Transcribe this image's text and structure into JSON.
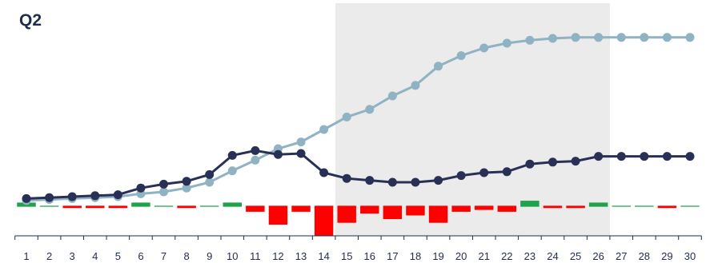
{
  "chart_data": {
    "type": "line",
    "title": "Q2",
    "x": [
      1,
      2,
      3,
      4,
      5,
      6,
      7,
      8,
      9,
      10,
      11,
      12,
      13,
      14,
      15,
      16,
      17,
      18,
      19,
      20,
      21,
      22,
      23,
      24,
      25,
      26,
      27,
      28,
      29,
      30
    ],
    "highlight_range": [
      14.5,
      26.5
    ],
    "series": [
      {
        "color": "#8fb3c2",
        "kind": "line",
        "values": [
          1,
          2,
          3,
          4,
          5,
          8,
          10,
          14,
          20,
          32,
          43,
          55,
          62,
          75,
          88,
          96,
          110,
          121,
          141,
          152,
          160,
          165,
          168,
          170,
          171,
          171,
          171,
          171,
          171,
          171
        ]
      },
      {
        "color": "#283155",
        "kind": "line",
        "values": [
          3,
          4,
          5,
          6,
          7,
          14,
          18,
          21,
          28,
          48,
          53,
          49,
          50,
          30,
          24,
          22,
          20,
          20,
          22,
          27,
          30,
          31,
          39,
          41,
          42,
          47,
          47,
          47,
          47,
          47
        ]
      },
      {
        "kind": "bar",
        "positive_color": "#1fa34a",
        "negative_color": "#ff0000",
        "values": [
          2,
          0,
          -1,
          -1,
          -1,
          2,
          0,
          -1,
          0,
          2,
          -3,
          -10,
          -3,
          -16,
          -9,
          -4,
          -7,
          -5,
          -9,
          -3,
          -2,
          -3,
          3,
          -1,
          -1,
          2,
          0,
          0,
          -1,
          0
        ]
      }
    ],
    "ylim_lines": [
      -5,
      185
    ],
    "grid": false
  }
}
